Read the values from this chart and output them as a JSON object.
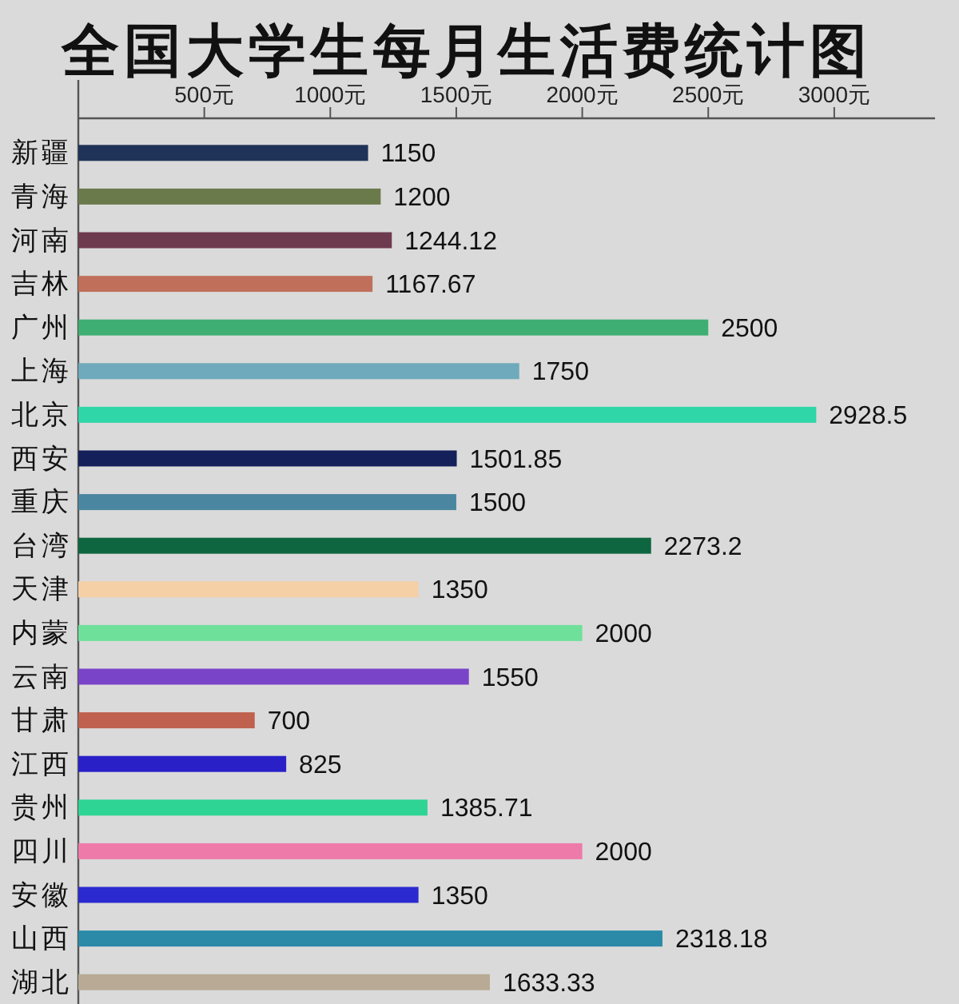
{
  "chart_data": {
    "type": "bar",
    "orientation": "horizontal",
    "title": "全国大学生每月生活费统计图",
    "categories": [
      "新疆",
      "青海",
      "河南",
      "吉林",
      "广州",
      "上海",
      "北京",
      "西安",
      "重庆",
      "台湾",
      "天津",
      "内蒙",
      "云南",
      "甘肃",
      "江西",
      "贵州",
      "四川",
      "安徽",
      "山西",
      "湖北"
    ],
    "values": [
      1150,
      1200,
      1244.12,
      1167.67,
      2500,
      1750,
      2928.5,
      1501.85,
      1500,
      2273.2,
      1350,
      2000,
      1550,
      700,
      825,
      1385.71,
      2000,
      1350,
      2318.18,
      1633.33
    ],
    "colors": [
      "#1f3358",
      "#6b7a4a",
      "#6e3a4e",
      "#c0705a",
      "#3fae72",
      "#6eaabb",
      "#2fd6a8",
      "#14205a",
      "#4a86a0",
      "#0e6640",
      "#f5cfa6",
      "#6ee09a",
      "#7a44c8",
      "#c0604e",
      "#2a20c8",
      "#2ed494",
      "#ee7aaa",
      "#2a2ad0",
      "#2a8aa8",
      "#b8aa94"
    ],
    "xlim": [
      0,
      3400
    ],
    "xticks": [
      {
        "value": 500,
        "label": "500元"
      },
      {
        "value": 1000,
        "label": "1000元"
      },
      {
        "value": 1500,
        "label": "1500元"
      },
      {
        "value": 2000,
        "label": "2000元"
      },
      {
        "value": 2500,
        "label": "2500元"
      },
      {
        "value": 3000,
        "label": "3000元"
      }
    ],
    "data_labels": true
  }
}
